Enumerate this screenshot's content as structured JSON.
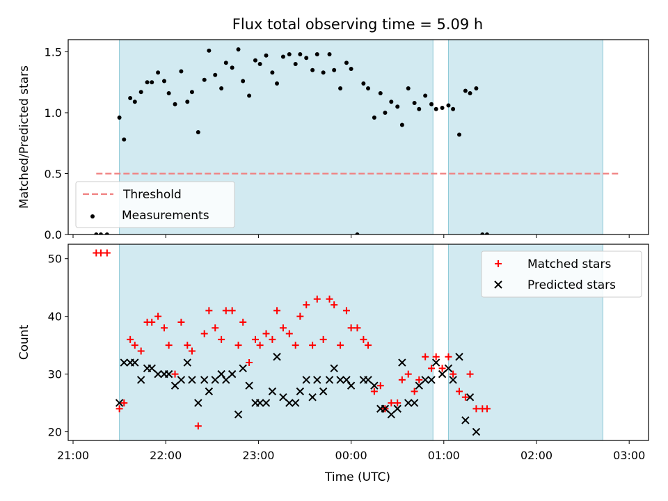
{
  "chart_data": {
    "type": "scatter",
    "title": "Flux total observing time = 5.09 h",
    "xlabel": "Time (UTC)",
    "x_ticks": [
      "21:00",
      "22:00",
      "23:00",
      "00:00",
      "01:00",
      "02:00",
      "03:00"
    ],
    "shaded_intervals": [
      [
        "21:30",
        "00:53"
      ],
      [
        "01:03",
        "02:43"
      ]
    ],
    "shade_color": "#add8e6",
    "panels": [
      {
        "ylabel": "Matched/Predicted stars",
        "ylim": [
          0,
          1.6
        ],
        "y_ticks": [
          "0.0",
          "0.5",
          "1.0",
          "1.5"
        ],
        "legend_position": "lower-left",
        "threshold": {
          "name": "Threshold",
          "value": 0.5,
          "x_range": [
            "21:15",
            "02:53"
          ],
          "color": "#f08080"
        },
        "series": [
          {
            "name": "Measurements",
            "color": "#000000",
            "marker": "dot",
            "points": [
              [
                "21:15",
                0
              ],
              [
                "21:18",
                0
              ],
              [
                "21:22",
                0
              ],
              [
                "21:30",
                0.96
              ],
              [
                "21:33",
                0.78
              ],
              [
                "21:37",
                1.12
              ],
              [
                "21:40",
                1.09
              ],
              [
                "21:44",
                1.17
              ],
              [
                "21:48",
                1.25
              ],
              [
                "21:51",
                1.25
              ],
              [
                "21:55",
                1.33
              ],
              [
                "21:59",
                1.26
              ],
              [
                "22:02",
                1.16
              ],
              [
                "22:06",
                1.07
              ],
              [
                "22:10",
                1.34
              ],
              [
                "22:14",
                1.09
              ],
              [
                "22:17",
                1.17
              ],
              [
                "22:21",
                0.84
              ],
              [
                "22:25",
                1.27
              ],
              [
                "22:28",
                1.51
              ],
              [
                "22:32",
                1.31
              ],
              [
                "22:36",
                1.2
              ],
              [
                "22:39",
                1.41
              ],
              [
                "22:43",
                1.37
              ],
              [
                "22:47",
                1.52
              ],
              [
                "22:50",
                1.26
              ],
              [
                "22:54",
                1.14
              ],
              [
                "22:58",
                1.43
              ],
              [
                "23:01",
                1.4
              ],
              [
                "23:05",
                1.47
              ],
              [
                "23:09",
                1.33
              ],
              [
                "23:12",
                1.24
              ],
              [
                "23:16",
                1.46
              ],
              [
                "23:20",
                1.48
              ],
              [
                "23:24",
                1.4
              ],
              [
                "23:27",
                1.48
              ],
              [
                "23:31",
                1.45
              ],
              [
                "23:35",
                1.35
              ],
              [
                "23:38",
                1.48
              ],
              [
                "23:42",
                1.33
              ],
              [
                "23:46",
                1.48
              ],
              [
                "23:49",
                1.35
              ],
              [
                "23:53",
                1.2
              ],
              [
                "23:57",
                1.41
              ],
              [
                "00:00",
                1.36
              ],
              [
                "00:04",
                0
              ],
              [
                "00:08",
                1.24
              ],
              [
                "00:11",
                1.2
              ],
              [
                "00:15",
                0.96
              ],
              [
                "00:19",
                1.16
              ],
              [
                "00:22",
                1.0
              ],
              [
                "00:26",
                1.09
              ],
              [
                "00:30",
                1.05
              ],
              [
                "00:33",
                0.9
              ],
              [
                "00:37",
                1.2
              ],
              [
                "00:41",
                1.08
              ],
              [
                "00:44",
                1.03
              ],
              [
                "00:48",
                1.14
              ],
              [
                "00:52",
                1.07
              ],
              [
                "00:55",
                1.03
              ],
              [
                "00:59",
                1.04
              ],
              [
                "01:03",
                1.06
              ],
              [
                "01:06",
                1.03
              ],
              [
                "01:10",
                0.82
              ],
              [
                "01:14",
                1.18
              ],
              [
                "01:17",
                1.16
              ],
              [
                "01:21",
                1.2
              ],
              [
                "01:25",
                0
              ],
              [
                "01:28",
                0
              ]
            ]
          }
        ]
      },
      {
        "ylabel": "Count",
        "ylim": [
          18.5,
          52.5
        ],
        "y_ticks": [
          "20",
          "30",
          "40",
          "50"
        ],
        "legend_position": "upper-right",
        "series": [
          {
            "name": "Matched stars",
            "color": "#ff0000",
            "marker": "plus",
            "points": [
              [
                "21:15",
                51
              ],
              [
                "21:18",
                51
              ],
              [
                "21:22",
                51
              ],
              [
                "21:30",
                24
              ],
              [
                "21:33",
                25
              ],
              [
                "21:37",
                36
              ],
              [
                "21:40",
                35
              ],
              [
                "21:44",
                34
              ],
              [
                "21:48",
                39
              ],
              [
                "21:51",
                39
              ],
              [
                "21:55",
                40
              ],
              [
                "21:59",
                38
              ],
              [
                "22:02",
                35
              ],
              [
                "22:06",
                30
              ],
              [
                "22:10",
                39
              ],
              [
                "22:14",
                35
              ],
              [
                "22:17",
                34
              ],
              [
                "22:21",
                21
              ],
              [
                "22:25",
                37
              ],
              [
                "22:28",
                41
              ],
              [
                "22:32",
                38
              ],
              [
                "22:36",
                36
              ],
              [
                "22:39",
                41
              ],
              [
                "22:43",
                41
              ],
              [
                "22:47",
                35
              ],
              [
                "22:50",
                39
              ],
              [
                "22:54",
                32
              ],
              [
                "22:58",
                36
              ],
              [
                "23:01",
                35
              ],
              [
                "23:05",
                37
              ],
              [
                "23:09",
                36
              ],
              [
                "23:12",
                41
              ],
              [
                "23:16",
                38
              ],
              [
                "23:20",
                37
              ],
              [
                "23:24",
                35
              ],
              [
                "23:27",
                40
              ],
              [
                "23:31",
                42
              ],
              [
                "23:35",
                35
              ],
              [
                "23:38",
                43
              ],
              [
                "23:42",
                36
              ],
              [
                "23:46",
                43
              ],
              [
                "23:49",
                42
              ],
              [
                "23:53",
                35
              ],
              [
                "23:57",
                41
              ],
              [
                "00:00",
                38
              ],
              [
                "00:04",
                38
              ],
              [
                "00:08",
                36
              ],
              [
                "00:11",
                35
              ],
              [
                "00:15",
                27
              ],
              [
                "00:19",
                28
              ],
              [
                "00:22",
                24
              ],
              [
                "00:26",
                25
              ],
              [
                "00:30",
                25
              ],
              [
                "00:33",
                29
              ],
              [
                "00:37",
                30
              ],
              [
                "00:41",
                27
              ],
              [
                "00:44",
                29
              ],
              [
                "00:48",
                33
              ],
              [
                "00:52",
                31
              ],
              [
                "00:55",
                33
              ],
              [
                "00:59",
                31
              ],
              [
                "01:03",
                33
              ],
              [
                "01:06",
                30
              ],
              [
                "01:10",
                27
              ],
              [
                "01:14",
                26
              ],
              [
                "01:17",
                30
              ],
              [
                "01:21",
                24
              ],
              [
                "01:25",
                24
              ],
              [
                "01:28",
                24
              ]
            ]
          },
          {
            "name": "Predicted stars",
            "color": "#000000",
            "marker": "x",
            "points": [
              [
                "21:30",
                25
              ],
              [
                "21:33",
                32
              ],
              [
                "21:37",
                32
              ],
              [
                "21:40",
                32
              ],
              [
                "21:44",
                29
              ],
              [
                "21:48",
                31
              ],
              [
                "21:51",
                31
              ],
              [
                "21:55",
                30
              ],
              [
                "21:59",
                30
              ],
              [
                "22:02",
                30
              ],
              [
                "22:06",
                28
              ],
              [
                "22:10",
                29
              ],
              [
                "22:14",
                32
              ],
              [
                "22:17",
                29
              ],
              [
                "22:21",
                25
              ],
              [
                "22:25",
                29
              ],
              [
                "22:28",
                27
              ],
              [
                "22:32",
                29
              ],
              [
                "22:36",
                30
              ],
              [
                "22:39",
                29
              ],
              [
                "22:43",
                30
              ],
              [
                "22:47",
                23
              ],
              [
                "22:50",
                31
              ],
              [
                "22:54",
                28
              ],
              [
                "22:58",
                25
              ],
              [
                "23:01",
                25
              ],
              [
                "23:05",
                25
              ],
              [
                "23:09",
                27
              ],
              [
                "23:12",
                33
              ],
              [
                "23:16",
                26
              ],
              [
                "23:20",
                25
              ],
              [
                "23:24",
                25
              ],
              [
                "23:27",
                27
              ],
              [
                "23:31",
                29
              ],
              [
                "23:35",
                26
              ],
              [
                "23:38",
                29
              ],
              [
                "23:42",
                27
              ],
              [
                "23:46",
                29
              ],
              [
                "23:49",
                31
              ],
              [
                "23:53",
                29
              ],
              [
                "23:57",
                29
              ],
              [
                "00:00",
                28
              ],
              [
                "00:08",
                29
              ],
              [
                "00:11",
                29
              ],
              [
                "00:15",
                28
              ],
              [
                "00:19",
                24
              ],
              [
                "00:22",
                24
              ],
              [
                "00:26",
                23
              ],
              [
                "00:30",
                24
              ],
              [
                "00:33",
                32
              ],
              [
                "00:37",
                25
              ],
              [
                "00:41",
                25
              ],
              [
                "00:44",
                28
              ],
              [
                "00:48",
                29
              ],
              [
                "00:52",
                29
              ],
              [
                "00:55",
                32
              ],
              [
                "00:59",
                30
              ],
              [
                "01:03",
                31
              ],
              [
                "01:06",
                29
              ],
              [
                "01:10",
                33
              ],
              [
                "01:14",
                22
              ],
              [
                "01:17",
                26
              ],
              [
                "01:21",
                20
              ]
            ]
          }
        ]
      }
    ]
  }
}
